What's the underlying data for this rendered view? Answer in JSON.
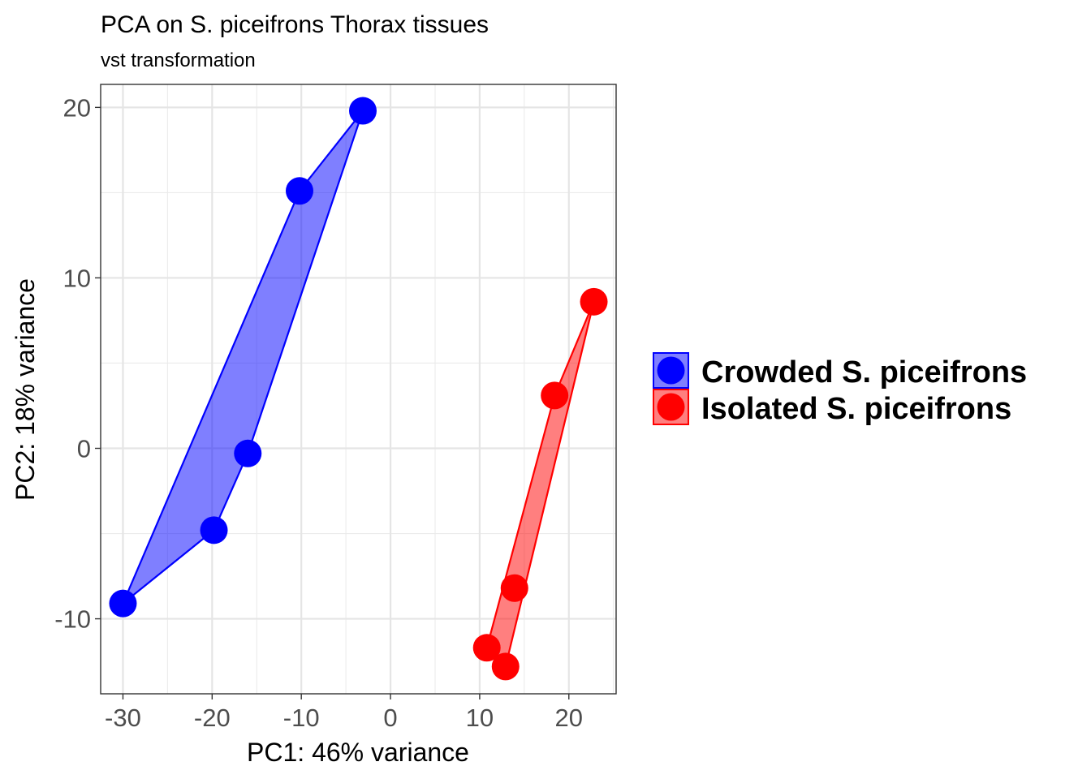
{
  "chart_data": {
    "type": "scatter",
    "title": "PCA on S. piceifrons Thorax tissues",
    "subtitle": "vst transformation",
    "xlabel": "PC1: 46% variance",
    "ylabel": "PC2: 18% variance",
    "xlim": [
      -32.5,
      25.3
    ],
    "ylim": [
      -14.4,
      21.35
    ],
    "xticks": [
      -30,
      -20,
      -10,
      0,
      10,
      20
    ],
    "yticks": [
      -10,
      0,
      10,
      20
    ],
    "xtick_labels": [
      "-30",
      "-20",
      "-10",
      "0",
      "10",
      "20"
    ],
    "ytick_labels": [
      "-10",
      "0",
      "10",
      "20"
    ],
    "grid": true,
    "legend_position": "right",
    "series": [
      {
        "name": "Crowded S. piceifrons",
        "color": "#0000ff",
        "points": [
          [
            -3.1,
            19.8
          ],
          [
            -10.2,
            15.1
          ],
          [
            -16.0,
            -0.3
          ],
          [
            -19.8,
            -4.8
          ],
          [
            -30.0,
            -9.1
          ]
        ]
      },
      {
        "name": "Isolated S. piceifrons",
        "color": "#ff0000",
        "points": [
          [
            22.8,
            8.6
          ],
          [
            18.4,
            3.1
          ],
          [
            13.9,
            -8.2
          ],
          [
            10.8,
            -11.7
          ],
          [
            12.9,
            -12.8
          ]
        ]
      }
    ]
  }
}
